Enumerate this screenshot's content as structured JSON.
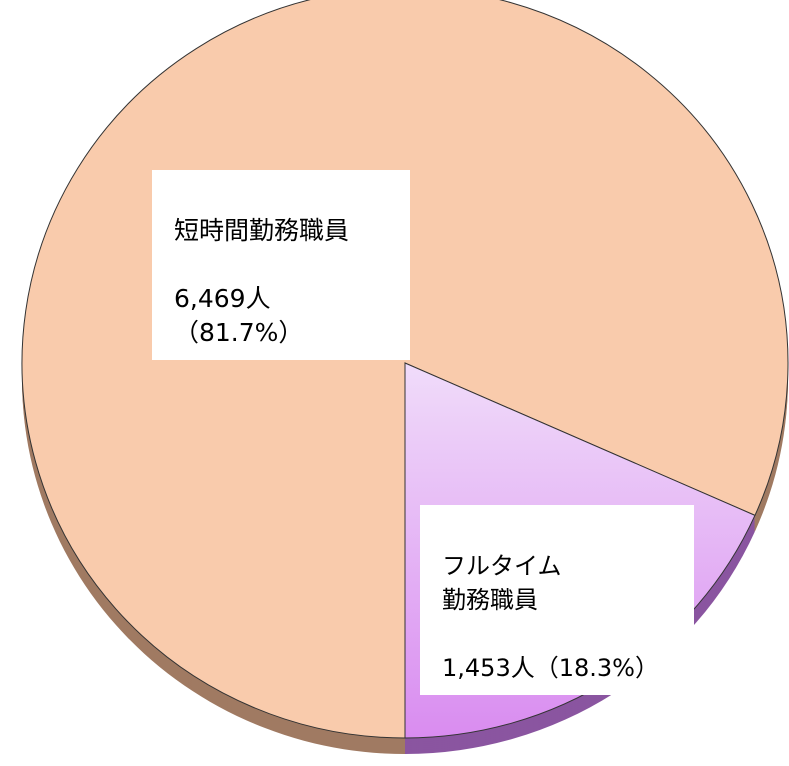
{
  "chart_data": {
    "type": "pie",
    "categories": [
      "短時間勤務職員",
      "フルタイム\n勤務職員"
    ],
    "values": [
      6469,
      1453
    ],
    "value_labels": [
      "6,469人（81.7%）",
      "1,453人（18.3%）"
    ],
    "colors": [
      "#f9cbac",
      "#e3a6f3"
    ]
  }
}
